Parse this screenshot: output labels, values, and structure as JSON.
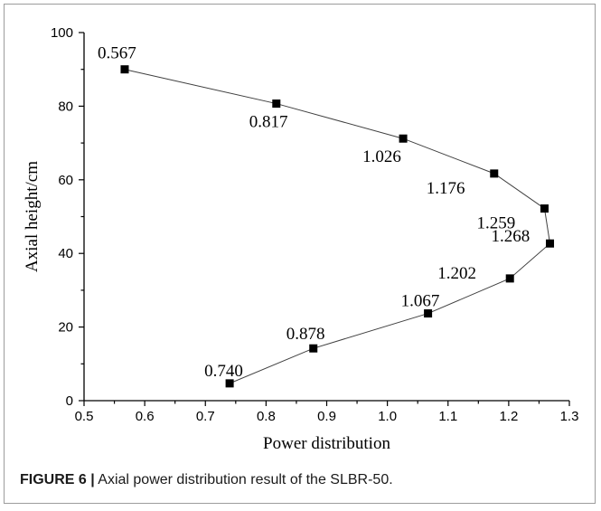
{
  "chart_data": {
    "type": "line",
    "title": "",
    "xlabel": "Power distribution",
    "ylabel": "Axial height/cm",
    "xlim": [
      0.5,
      1.3
    ],
    "ylim": [
      0,
      100
    ],
    "x_ticks": [
      "0.5",
      "0.6",
      "0.7",
      "0.8",
      "0.9",
      "1.0",
      "1.1",
      "1.2",
      "1.3"
    ],
    "y_ticks": [
      "0",
      "20",
      "40",
      "60",
      "80",
      "100"
    ],
    "grid": false,
    "legend": "none",
    "series": [
      {
        "marker": "square",
        "color": "#000000",
        "points": [
          {
            "x": 0.567,
            "y": 90.0,
            "label": "0.567"
          },
          {
            "x": 0.817,
            "y": 80.7,
            "label": "0.817"
          },
          {
            "x": 1.026,
            "y": 71.2,
            "label": "1.026"
          },
          {
            "x": 1.176,
            "y": 61.7,
            "label": "1.176"
          },
          {
            "x": 1.259,
            "y": 52.2,
            "label": "1.259"
          },
          {
            "x": 1.268,
            "y": 42.7,
            "label": "1.268"
          },
          {
            "x": 1.202,
            "y": 33.2,
            "label": "1.202"
          },
          {
            "x": 1.067,
            "y": 23.7,
            "label": "1.067"
          },
          {
            "x": 0.878,
            "y": 14.2,
            "label": "0.878"
          },
          {
            "x": 0.74,
            "y": 4.7,
            "label": "0.740"
          }
        ]
      }
    ]
  },
  "caption": {
    "figure_label": "FIGURE 6 |",
    "text": " Axial power distribution result of the SLBR-50."
  }
}
